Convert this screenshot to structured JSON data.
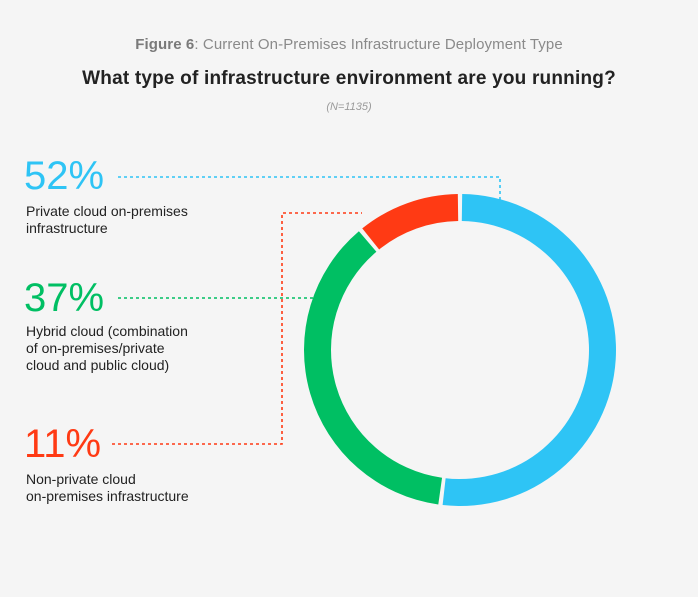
{
  "figure": {
    "number_label": "Figure 6",
    "caption": ": Current On-Premises Infrastructure Deployment Type",
    "title": "What type of infrastructure environment are you running?",
    "sample": "(N=1135)"
  },
  "colors": {
    "private": "#2ec4f5",
    "hybrid": "#00bf63",
    "nonprivate": "#ff3a14"
  },
  "chart_data": {
    "type": "pie",
    "variant": "donut",
    "title": "What type of infrastructure environment are you running?",
    "subtitle": "(N=1135)",
    "slices": [
      {
        "label": "Private cloud on-premises infrastructure",
        "value": 52,
        "display": "52%"
      },
      {
        "label": "Hybrid cloud (combination of on-premises/private cloud and public cloud)",
        "value": 37,
        "display": "37%"
      },
      {
        "label": "Non-private cloud on-premises infrastructure",
        "value": 11,
        "display": "11%"
      }
    ]
  },
  "legend": [
    {
      "pct": "52%",
      "lines": [
        "Private cloud on-premises",
        "infrastructure"
      ]
    },
    {
      "pct": "37%",
      "lines": [
        "Hybrid cloud (combination",
        "of on-premises/private",
        "cloud and public cloud)"
      ]
    },
    {
      "pct": "11%",
      "lines": [
        "Non-private cloud",
        "on-premises infrastructure"
      ]
    }
  ]
}
